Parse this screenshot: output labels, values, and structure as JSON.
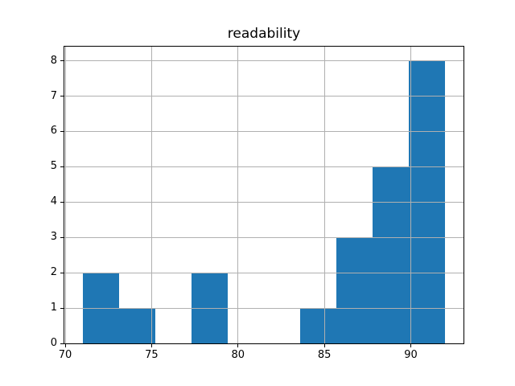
{
  "figure": {
    "background": "#ffffff"
  },
  "chart_data": {
    "type": "bar",
    "subtype": "histogram",
    "title": "readability",
    "xlabel": "",
    "ylabel": "",
    "bin_edges": [
      71.0,
      73.1,
      75.2,
      77.3,
      79.4,
      81.5,
      83.6,
      85.7,
      87.8,
      89.9,
      92.0
    ],
    "counts": [
      2,
      1,
      0,
      2,
      0,
      0,
      1,
      3,
      5,
      8
    ],
    "x_tick_labels": [
      "70",
      "75",
      "80",
      "85",
      "90"
    ],
    "x_tick_values": [
      70,
      75,
      80,
      85,
      90
    ],
    "y_tick_labels": [
      "0",
      "1",
      "2",
      "3",
      "4",
      "5",
      "6",
      "7",
      "8"
    ],
    "y_tick_values": [
      0,
      1,
      2,
      3,
      4,
      5,
      6,
      7,
      8
    ],
    "xlim": [
      69.95,
      93.05
    ],
    "ylim": [
      0,
      8.4
    ],
    "grid": true,
    "grid_above_bars": true,
    "legend": null,
    "bar_color": "#1f77b4",
    "grid_color": "#b0b0b0",
    "spine_color": "#000000",
    "text_color": "#000000"
  }
}
